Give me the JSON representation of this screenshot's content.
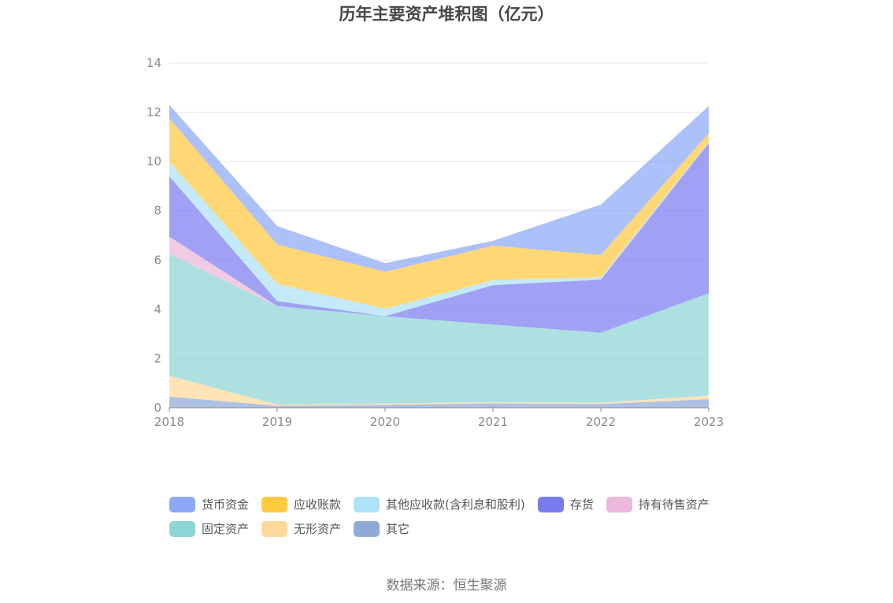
{
  "chart_data": {
    "type": "area",
    "stacked": true,
    "title": "历年主要资产堆积图（亿元）",
    "xlabel": "",
    "ylabel": "",
    "categories": [
      "2018",
      "2019",
      "2020",
      "2021",
      "2022",
      "2023"
    ],
    "ylim": [
      0,
      14
    ],
    "yticks": [
      0,
      2,
      4,
      6,
      8,
      10,
      12,
      14
    ],
    "grid": true,
    "legend_position": "bottom",
    "series": [
      {
        "name": "其它",
        "color": "#8fa9d8",
        "values": [
          0.45,
          0.08,
          0.12,
          0.18,
          0.15,
          0.35
        ]
      },
      {
        "name": "无形资产",
        "color": "#ffd99a",
        "values": [
          0.85,
          0.05,
          0.05,
          0.05,
          0.05,
          0.15
        ]
      },
      {
        "name": "固定资产",
        "color": "#8dd6d6",
        "values": [
          4.95,
          4.0,
          3.55,
          3.15,
          2.85,
          4.15
        ]
      },
      {
        "name": "持有待售资产",
        "color": "#eab8da",
        "values": [
          0.7,
          0.0,
          0.0,
          0.0,
          0.0,
          0.0
        ]
      },
      {
        "name": "存货",
        "color": "#7b7bf0",
        "values": [
          2.45,
          0.2,
          0.0,
          1.6,
          2.15,
          6.1
        ]
      },
      {
        "name": "其他应收款(含利息和股利)",
        "color": "#ade2f8",
        "values": [
          0.6,
          0.7,
          0.3,
          0.2,
          0.1,
          0.05
        ]
      },
      {
        "name": "应收账款",
        "color": "#ffc940",
        "values": [
          1.75,
          1.6,
          1.5,
          1.4,
          0.9,
          0.35
        ]
      },
      {
        "name": "货币资金",
        "color": "#8ca8f6",
        "values": [
          0.55,
          0.75,
          0.35,
          0.2,
          2.05,
          1.1
        ]
      }
    ]
  },
  "legend": [
    {
      "label": "货币资金",
      "color": "#8ca8f6"
    },
    {
      "label": "应收账款",
      "color": "#ffc940"
    },
    {
      "label": "其他应收款(含利息和股利)",
      "color": "#ade2f8"
    },
    {
      "label": "存货",
      "color": "#7b7bf0"
    },
    {
      "label": "持有待售资产",
      "color": "#eab8da"
    },
    {
      "label": "固定资产",
      "color": "#8dd6d6"
    },
    {
      "label": "无形资产",
      "color": "#ffd99a"
    },
    {
      "label": "其它",
      "color": "#8fa9d8"
    }
  ],
  "source": "数据来源：恒生聚源"
}
